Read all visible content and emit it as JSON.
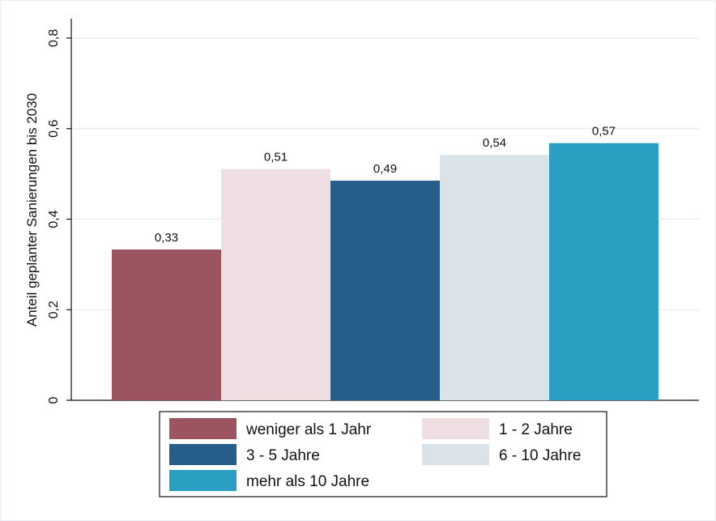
{
  "chart_data": {
    "type": "bar",
    "ylabel": "Anteil geplanter Sanierungen bis 2030",
    "ylim": [
      0,
      0.8
    ],
    "yticks": [
      {
        "value": 0,
        "label": "0"
      },
      {
        "value": 0.2,
        "label": "0,2"
      },
      {
        "value": 0.4,
        "label": "0,4"
      },
      {
        "value": 0.6,
        "label": "0,6"
      },
      {
        "value": 0.8,
        "label": "0,8"
      }
    ],
    "grid": true,
    "legend_position": "bottom",
    "series": [
      {
        "name": "weniger als 1 Jahr",
        "value": 0.333,
        "label": "0,33",
        "color": "#9c5461"
      },
      {
        "name": "1 - 2 Jahre",
        "value": 0.511,
        "label": "0,51",
        "color": "#efdfe2"
      },
      {
        "name": "3 - 5 Jahre",
        "value": 0.485,
        "label": "0,49",
        "color": "#275d8b"
      },
      {
        "name": "6 - 10 Jahre",
        "value": 0.542,
        "label": "0,54",
        "color": "#d9e3e9"
      },
      {
        "name": "mehr als 10 Jahre",
        "value": 0.568,
        "label": "0,57",
        "color": "#2a9fc2"
      }
    ]
  }
}
